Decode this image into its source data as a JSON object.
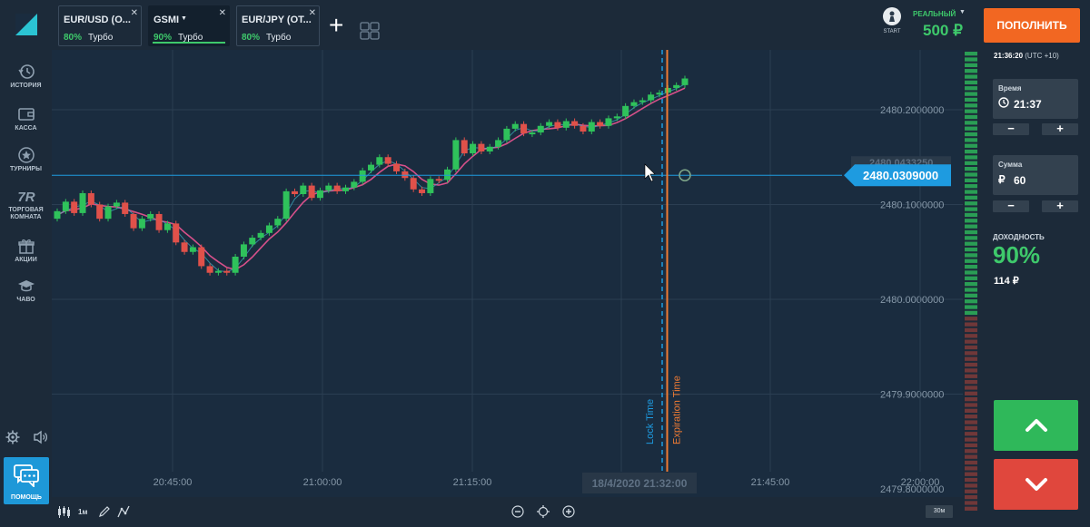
{
  "sidebar": {
    "items": [
      {
        "label": "ИСТОРИЯ",
        "icon": "history-icon"
      },
      {
        "label": "КАССА",
        "icon": "wallet-icon"
      },
      {
        "label": "ТУРНИРЫ",
        "icon": "star-icon"
      },
      {
        "label": "ТОРГОВАЯ КОМНАТА",
        "icon": "trading-room-icon"
      },
      {
        "label": "АКЦИИ",
        "icon": "gift-icon"
      },
      {
        "label": "ЧАВО",
        "icon": "graduation-cap-icon"
      }
    ],
    "help_label": "ПОМОЩЬ"
  },
  "tabs": [
    {
      "name": "EUR/USD (О...",
      "percent": "80%",
      "mode": "Турбо"
    },
    {
      "name": "GSMI",
      "percent": "90%",
      "mode": "Турбо"
    },
    {
      "name": "EUR/JPY (ОТ...",
      "percent": "80%",
      "mode": "Турбо"
    }
  ],
  "account": {
    "start_label": "START",
    "type_label": "РЕАЛЬНЫЙ",
    "balance": "500 ₽",
    "deposit_label": "ПОПОЛНИТЬ"
  },
  "chart": {
    "current_price": "2480.0309000",
    "shadow_price": "2480.0433250",
    "lock_label": "Lock Time",
    "expiration_label": "Expiration Time",
    "cursor_time": "18/4/2020 21:32:00",
    "timeframe": "1м",
    "zoom": "30м",
    "colors": {
      "up": "#2fc25b",
      "down": "#e0514a",
      "price_line": "#1e9be0",
      "ma": "#d6508a",
      "expiration": "#f07b33"
    }
  },
  "chart_data": {
    "type": "candlestick",
    "x_ticks": [
      "20:45:00",
      "21:00:00",
      "21:15:00",
      "21:45:00",
      "22:00:00"
    ],
    "y_ticks": [
      "2480.2000000",
      "2480.1000000",
      "2480.0000000",
      "2479.9000000",
      "2479.8000000"
    ],
    "ylim": [
      2479.8,
      2480.2
    ],
    "current": 2480.0309,
    "lock_time": "21:34:00",
    "expiration_time": "21:34:30",
    "candles": [
      {
        "o": 2479.985,
        "c": 2479.993
      },
      {
        "o": 2479.993,
        "c": 2480.003
      },
      {
        "o": 2480.003,
        "c": 2479.991
      },
      {
        "o": 2479.991,
        "c": 2480.012
      },
      {
        "o": 2480.012,
        "c": 2480.0
      },
      {
        "o": 2480.0,
        "c": 2479.985
      },
      {
        "o": 2479.985,
        "c": 2479.998
      },
      {
        "o": 2479.998,
        "c": 2480.002
      },
      {
        "o": 2480.002,
        "c": 2479.99
      },
      {
        "o": 2479.99,
        "c": 2479.975
      },
      {
        "o": 2479.975,
        "c": 2479.985
      },
      {
        "o": 2479.985,
        "c": 2479.99
      },
      {
        "o": 2479.99,
        "c": 2479.973
      },
      {
        "o": 2479.973,
        "c": 2479.98
      },
      {
        "o": 2479.98,
        "c": 2479.96
      },
      {
        "o": 2479.96,
        "c": 2479.95
      },
      {
        "o": 2479.95,
        "c": 2479.955
      },
      {
        "o": 2479.955,
        "c": 2479.935
      },
      {
        "o": 2479.935,
        "c": 2479.928
      },
      {
        "o": 2479.928,
        "c": 2479.93
      },
      {
        "o": 2479.93,
        "c": 2479.928
      },
      {
        "o": 2479.928,
        "c": 2479.945
      },
      {
        "o": 2479.945,
        "c": 2479.958
      },
      {
        "o": 2479.958,
        "c": 2479.965
      },
      {
        "o": 2479.965,
        "c": 2479.97
      },
      {
        "o": 2479.97,
        "c": 2479.978
      },
      {
        "o": 2479.978,
        "c": 2479.985
      },
      {
        "o": 2479.985,
        "c": 2480.014
      },
      {
        "o": 2480.014,
        "c": 2480.011
      },
      {
        "o": 2480.011,
        "c": 2480.02
      },
      {
        "o": 2480.02,
        "c": 2480.007
      },
      {
        "o": 2480.007,
        "c": 2480.015
      },
      {
        "o": 2480.015,
        "c": 2480.02
      },
      {
        "o": 2480.02,
        "c": 2480.014
      },
      {
        "o": 2480.014,
        "c": 2480.018
      },
      {
        "o": 2480.018,
        "c": 2480.024
      },
      {
        "o": 2480.024,
        "c": 2480.036
      },
      {
        "o": 2480.036,
        "c": 2480.042
      },
      {
        "o": 2480.042,
        "c": 2480.05
      },
      {
        "o": 2480.05,
        "c": 2480.043
      },
      {
        "o": 2480.043,
        "c": 2480.035
      },
      {
        "o": 2480.035,
        "c": 2480.028
      },
      {
        "o": 2480.028,
        "c": 2480.016
      },
      {
        "o": 2480.016,
        "c": 2480.012
      },
      {
        "o": 2480.012,
        "c": 2480.027
      },
      {
        "o": 2480.027,
        "c": 2480.026
      },
      {
        "o": 2480.026,
        "c": 2480.037
      },
      {
        "o": 2480.037,
        "c": 2480.068
      },
      {
        "o": 2480.068,
        "c": 2480.054
      },
      {
        "o": 2480.054,
        "c": 2480.064
      },
      {
        "o": 2480.064,
        "c": 2480.056
      },
      {
        "o": 2480.056,
        "c": 2480.061
      },
      {
        "o": 2480.061,
        "c": 2480.068
      },
      {
        "o": 2480.068,
        "c": 2480.08
      },
      {
        "o": 2480.08,
        "c": 2480.085
      },
      {
        "o": 2480.085,
        "c": 2480.075
      },
      {
        "o": 2480.075,
        "c": 2480.076
      },
      {
        "o": 2480.076,
        "c": 2480.083
      },
      {
        "o": 2480.083,
        "c": 2480.087
      },
      {
        "o": 2480.087,
        "c": 2480.081
      },
      {
        "o": 2480.081,
        "c": 2480.088
      },
      {
        "o": 2480.088,
        "c": 2480.083
      },
      {
        "o": 2480.083,
        "c": 2480.077
      },
      {
        "o": 2480.077,
        "c": 2480.087
      },
      {
        "o": 2480.087,
        "c": 2480.083
      },
      {
        "o": 2480.083,
        "c": 2480.091
      },
      {
        "o": 2480.091,
        "c": 2480.093
      },
      {
        "o": 2480.093,
        "c": 2480.104
      },
      {
        "o": 2480.104,
        "c": 2480.108
      },
      {
        "o": 2480.108,
        "c": 2480.11
      },
      {
        "o": 2480.11,
        "c": 2480.116
      },
      {
        "o": 2480.116,
        "c": 2480.118
      },
      {
        "o": 2480.118,
        "c": 2480.123
      },
      {
        "o": 2480.123,
        "c": 2480.126
      },
      {
        "o": 2480.126,
        "c": 2480.133
      }
    ]
  },
  "panel": {
    "server_time": "21:36:20",
    "timezone": "(UTC +10)",
    "time_label": "Время",
    "time_value": "21:37",
    "amount_label": "Сумма",
    "currency_symbol": "₽",
    "amount_value": "60",
    "yield_label": "ДОХОДНОСТЬ",
    "yield_percent": "90%",
    "yield_amount": "114 ₽"
  }
}
